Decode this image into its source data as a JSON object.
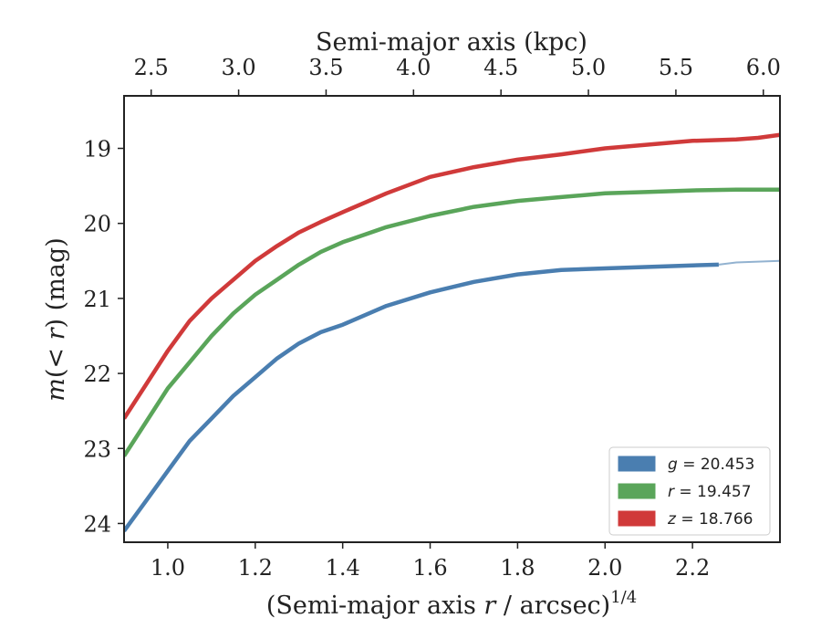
{
  "chart_data": {
    "type": "line",
    "title": "",
    "xlabel_prefix": "(Semi-major axis ",
    "xlabel_var": "r",
    "xlabel_suffix": " / arcsec)",
    "xlabel_exponent": "1/4",
    "x2label": "Semi-major axis (kpc)",
    "ylabel_var": "m",
    "ylabel_paren_open": "(",
    "ylabel_inner": "< r",
    "ylabel_paren_close": ")",
    "ylabel_unit": " (mag)",
    "xlim": [
      0.9,
      2.4
    ],
    "ylim": [
      24.25,
      18.3
    ],
    "y_inverted": true,
    "xticks": [
      1.0,
      1.2,
      1.4,
      1.6,
      1.8,
      2.0,
      2.2
    ],
    "xtick_labels": [
      "1.0",
      "1.2",
      "1.4",
      "1.6",
      "1.8",
      "2.0",
      "2.2"
    ],
    "yticks": [
      19,
      20,
      21,
      22,
      23,
      24
    ],
    "ytick_labels": [
      "19",
      "20",
      "21",
      "22",
      "23",
      "24"
    ],
    "x2ticks_x": [
      0.962,
      1.162,
      1.362,
      1.562,
      1.762,
      1.962,
      2.162,
      2.362
    ],
    "x2tick_labels": [
      "2.5",
      "3.0",
      "3.5",
      "4.0",
      "4.5",
      "5.0",
      "5.5",
      "6.0"
    ],
    "grid": false,
    "legend_position": "lower-right",
    "series": [
      {
        "name_var": "g",
        "name_value": " = 20.453",
        "color": "#4a7eb0",
        "x": [
          0.9,
          0.95,
          1.0,
          1.05,
          1.1,
          1.15,
          1.2,
          1.25,
          1.3,
          1.35,
          1.4,
          1.5,
          1.6,
          1.7,
          1.8,
          1.9,
          2.0,
          2.1,
          2.2,
          2.26
        ],
        "y": [
          24.1,
          23.7,
          23.3,
          22.9,
          22.6,
          22.3,
          22.05,
          21.8,
          21.6,
          21.45,
          21.35,
          21.1,
          20.92,
          20.78,
          20.68,
          20.62,
          20.6,
          20.58,
          20.56,
          20.55
        ],
        "ext_x": [
          2.26,
          2.3,
          2.4
        ],
        "ext_y": [
          20.55,
          20.52,
          20.5
        ]
      },
      {
        "name_var": "r",
        "name_value": " = 19.457",
        "color": "#5aa55a",
        "x": [
          0.9,
          0.95,
          1.0,
          1.05,
          1.1,
          1.15,
          1.2,
          1.25,
          1.3,
          1.35,
          1.4,
          1.5,
          1.6,
          1.7,
          1.8,
          1.9,
          2.0,
          2.1,
          2.2,
          2.3,
          2.4
        ],
        "y": [
          23.1,
          22.65,
          22.2,
          21.85,
          21.5,
          21.2,
          20.95,
          20.75,
          20.55,
          20.38,
          20.25,
          20.05,
          19.9,
          19.78,
          19.7,
          19.65,
          19.6,
          19.58,
          19.56,
          19.55,
          19.55
        ]
      },
      {
        "name_var": "z",
        "name_value": " = 18.766",
        "color": "#d03a3a",
        "x": [
          0.9,
          0.95,
          1.0,
          1.05,
          1.1,
          1.15,
          1.2,
          1.25,
          1.3,
          1.35,
          1.4,
          1.5,
          1.6,
          1.7,
          1.8,
          1.9,
          2.0,
          2.1,
          2.2,
          2.3,
          2.35,
          2.4
        ],
        "y": [
          22.6,
          22.15,
          21.7,
          21.3,
          21.0,
          20.75,
          20.5,
          20.3,
          20.12,
          19.98,
          19.85,
          19.6,
          19.38,
          19.25,
          19.15,
          19.08,
          19.0,
          18.95,
          18.9,
          18.88,
          18.86,
          18.82
        ]
      }
    ]
  }
}
